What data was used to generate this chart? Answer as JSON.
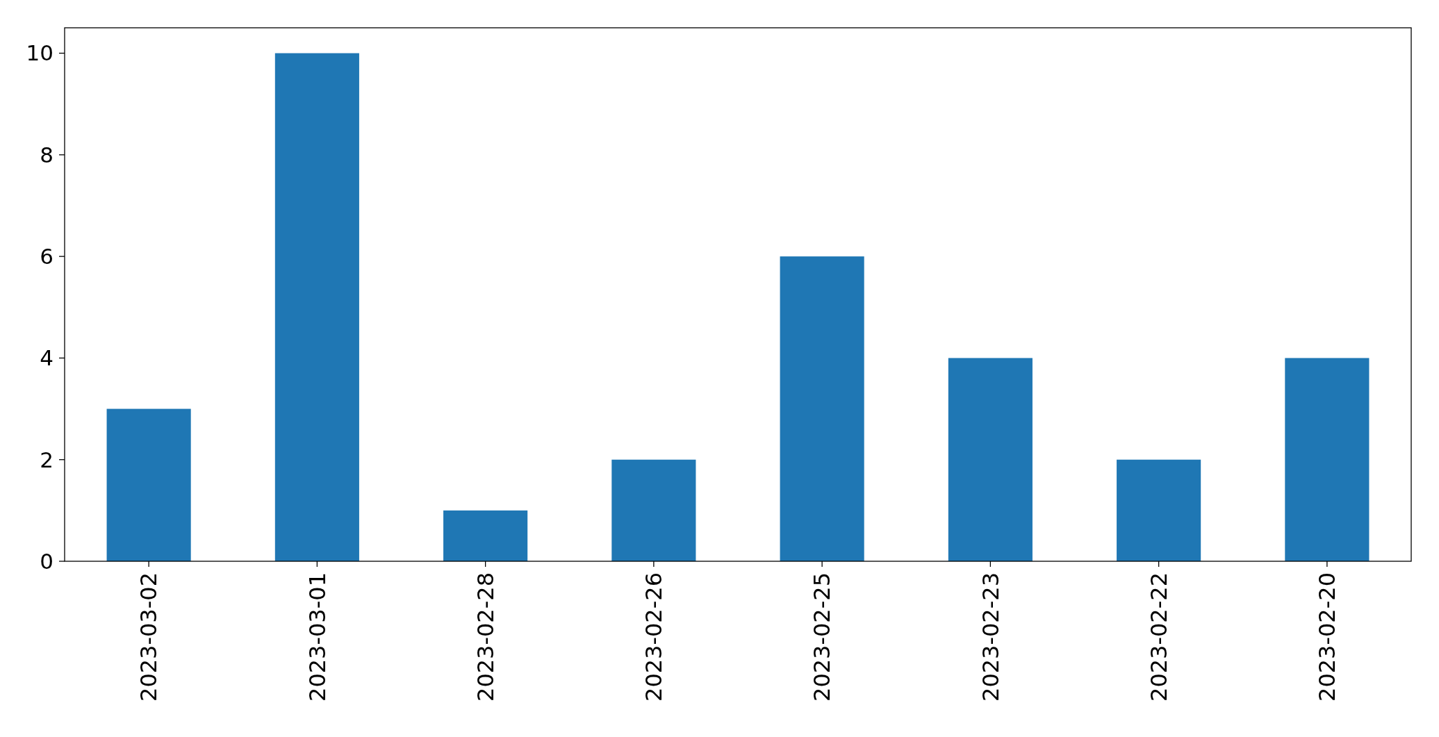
{
  "chart_data": {
    "type": "bar",
    "categories": [
      "2023-03-02",
      "2023-03-01",
      "2023-02-28",
      "2023-02-26",
      "2023-02-25",
      "2023-02-23",
      "2023-02-22",
      "2023-02-20"
    ],
    "values": [
      3,
      10,
      1,
      2,
      6,
      4,
      2,
      4
    ],
    "color": "#1f77b4",
    "ylim": [
      0,
      10.5
    ],
    "yticks": [
      0,
      2,
      4,
      6,
      8,
      10
    ]
  }
}
